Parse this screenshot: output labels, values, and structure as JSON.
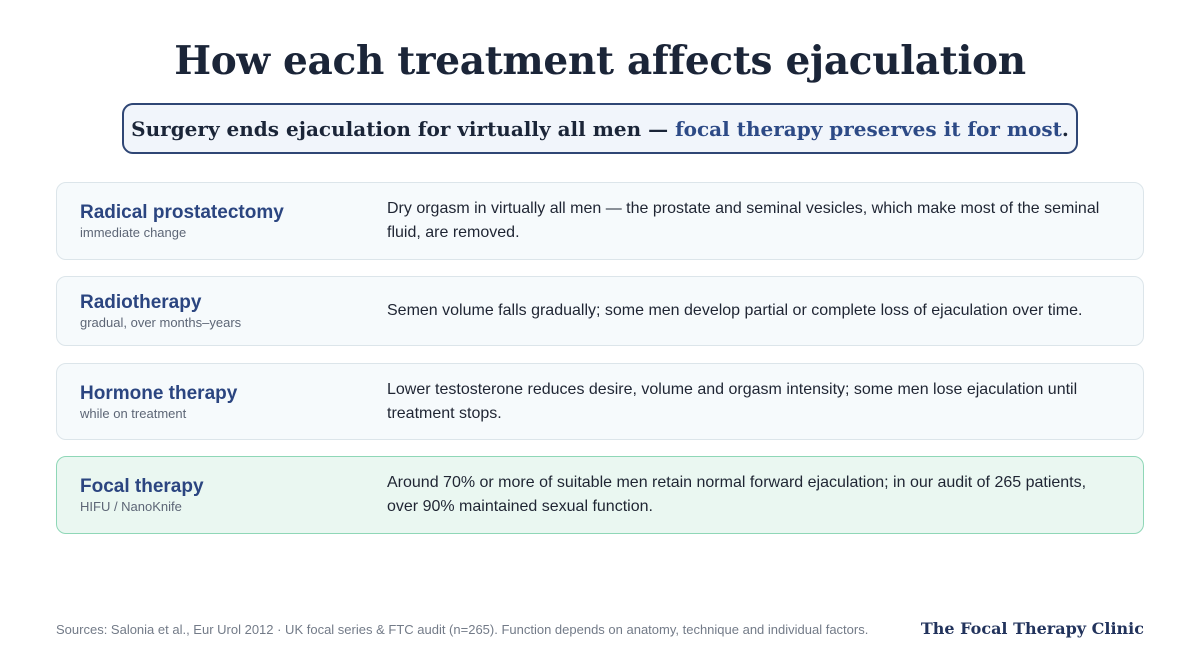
{
  "title": "How each treatment affects ejaculation",
  "banner": {
    "lead": "Surgery ends ejaculation for virtually all men — ",
    "accent": "focal therapy preserves it for most",
    "tail": "."
  },
  "treatments": [
    {
      "name": "Radical prostatectomy",
      "sub": "immediate change",
      "desc": "Dry orgasm in virtually all men — the prostate and seminal vesicles, which make most of the seminal fluid, are removed."
    },
    {
      "name": "Radiotherapy",
      "sub": "gradual, over months–years",
      "desc": "Semen volume falls gradually; some men develop partial or complete loss of ejaculation over time."
    },
    {
      "name": "Hormone therapy",
      "sub": "while on treatment",
      "desc": "Lower testosterone reduces desire, volume and orgasm intensity; some men lose ejaculation until treatment stops."
    },
    {
      "name": "Focal therapy",
      "sub": "HIFU / NanoKnife",
      "desc": "Around 70% or more of suitable men retain normal forward ejaculation; in our audit of 265 patients, over 90% maintained sexual function."
    }
  ],
  "footer": {
    "sources": "Sources: Salonia et al., Eur Urol 2012 · UK focal series & FTC audit (n=265). Function depends on anatomy, technique and individual factors.",
    "brand": "The Focal Therapy Clinic"
  },
  "colors": {
    "title": "#1b2538",
    "accent": "#2d4a86",
    "highlight_bg": "#eaf7f1",
    "highlight_border": "#8fd7b7"
  }
}
